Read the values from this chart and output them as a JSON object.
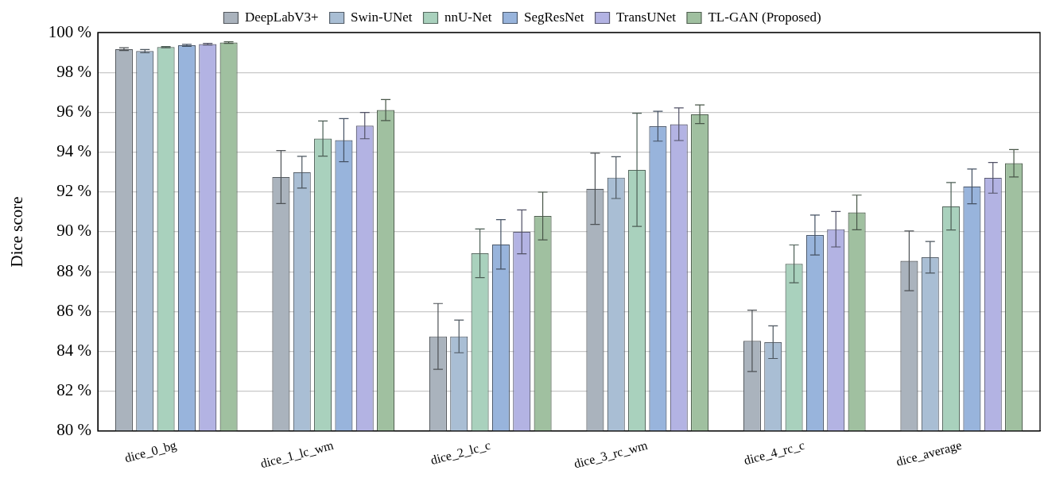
{
  "chart_data": {
    "type": "bar",
    "ylabel": "Dice score",
    "categories": [
      "dice_0_bg",
      "dice_1_lc_wm",
      "dice_2_lc_c",
      "dice_3_rc_wm",
      "dice_4_rc_c",
      "dice_average"
    ],
    "series": [
      {
        "name": "DeepLabV3+",
        "color": "#aab3bd",
        "values": [
          99.17,
          92.75,
          84.75,
          92.16,
          84.53,
          88.54
        ],
        "errors": [
          0.07,
          1.33,
          1.65,
          1.79,
          1.54,
          1.5
        ]
      },
      {
        "name": "Swin-UNet",
        "color": "#a9bed4",
        "values": [
          99.07,
          92.99,
          84.75,
          92.72,
          84.46,
          88.72
        ],
        "errors": [
          0.08,
          0.8,
          0.82,
          1.05,
          0.82,
          0.79
        ]
      },
      {
        "name": "nnU-Net",
        "color": "#a9d1bd",
        "values": [
          99.27,
          94.68,
          88.92,
          93.11,
          88.39,
          91.28
        ],
        "errors": [
          0.03,
          0.88,
          1.22,
          2.84,
          0.95,
          1.19
        ]
      },
      {
        "name": "SegResNet",
        "color": "#98b4dc",
        "values": [
          99.36,
          94.6,
          89.37,
          95.3,
          89.84,
          92.28
        ],
        "errors": [
          0.05,
          1.08,
          1.24,
          0.75,
          1.0,
          0.87
        ]
      },
      {
        "name": "TransUNet",
        "color": "#b3b3e3",
        "values": [
          99.42,
          95.33,
          90.0,
          95.4,
          90.13,
          92.71
        ],
        "errors": [
          0.04,
          0.66,
          1.1,
          0.82,
          0.89,
          0.77
        ]
      },
      {
        "name": "TL-GAN (Proposed)",
        "color": "#a0c0a0",
        "values": [
          99.5,
          96.11,
          90.79,
          95.9,
          90.97,
          93.44
        ],
        "errors": [
          0.04,
          0.53,
          1.2,
          0.47,
          0.87,
          0.69
        ]
      }
    ],
    "ylim": [
      80,
      100
    ],
    "yticks": [
      {
        "value": 80,
        "label": "80 %"
      },
      {
        "value": 82,
        "label": "82 %"
      },
      {
        "value": 84,
        "label": "84 %"
      },
      {
        "value": 86,
        "label": "86 %"
      },
      {
        "value": 88,
        "label": "88 %"
      },
      {
        "value": 90,
        "label": "90 %"
      },
      {
        "value": 92,
        "label": "92 %"
      },
      {
        "value": 94,
        "label": "94 %"
      },
      {
        "value": 96,
        "label": "96 %"
      },
      {
        "value": 98,
        "label": "98 %"
      },
      {
        "value": 100,
        "label": "100 %"
      }
    ],
    "grid": "y",
    "legend": "top"
  }
}
